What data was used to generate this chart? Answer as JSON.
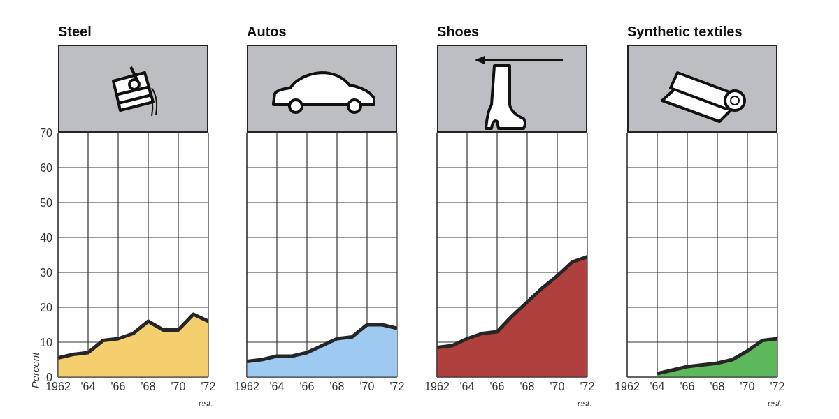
{
  "chart_data": [
    {
      "type": "area",
      "title": "Steel",
      "ylabel": "Percent",
      "x": [
        1962,
        1963,
        1964,
        1965,
        1966,
        1967,
        1968,
        1969,
        1970,
        1971,
        1972
      ],
      "values": [
        5.5,
        6.5,
        7,
        10.5,
        11,
        12.5,
        16,
        13.5,
        13.5,
        18,
        16
      ],
      "color": "#f5cf6e",
      "xlim": [
        1962,
        1972
      ],
      "xticks": [
        {
          "value": 1962,
          "label": "1962"
        },
        {
          "value": 1964,
          "label": "'64"
        },
        {
          "value": 1966,
          "label": "'66"
        },
        {
          "value": 1968,
          "label": "'68"
        },
        {
          "value": 1970,
          "label": "'70"
        },
        {
          "value": 1972,
          "label": "'72"
        }
      ],
      "ylim": [
        0,
        70
      ],
      "yticks": [
        0,
        10,
        20,
        30,
        40,
        50,
        60,
        70
      ],
      "grid": true,
      "annotations": [
        "est."
      ]
    },
    {
      "type": "area",
      "title": "Autos",
      "x": [
        1962,
        1963,
        1964,
        1965,
        1966,
        1967,
        1968,
        1969,
        1970,
        1971,
        1972
      ],
      "values": [
        4.5,
        5,
        6,
        6,
        7,
        9,
        11,
        11.5,
        15,
        15,
        14
      ],
      "color": "#9ec9f0",
      "xlim": [
        1962,
        1972
      ],
      "xticks": [
        {
          "value": 1962,
          "label": "1962"
        },
        {
          "value": 1964,
          "label": "'64"
        },
        {
          "value": 1966,
          "label": "'66"
        },
        {
          "value": 1968,
          "label": "'68"
        },
        {
          "value": 1970,
          "label": "'70"
        },
        {
          "value": 1972,
          "label": "'72"
        }
      ],
      "ylim": [
        0,
        70
      ],
      "yticks": [
        0,
        10,
        20,
        30,
        40,
        50,
        60,
        70
      ],
      "grid": true,
      "tick_labels": "x"
    },
    {
      "type": "area",
      "title": "Shoes",
      "x": [
        1962,
        1963,
        1964,
        1965,
        1966,
        1967,
        1968,
        1969,
        1970,
        1971,
        1972
      ],
      "values": [
        8.5,
        9,
        11,
        12.5,
        13,
        17.5,
        21.5,
        25.5,
        29,
        33,
        34.5
      ],
      "color": "#b0403d",
      "xlim": [
        1962,
        1972
      ],
      "xticks": [
        {
          "value": 1962,
          "label": "1962"
        },
        {
          "value": 1964,
          "label": "'64"
        },
        {
          "value": 1966,
          "label": "'66"
        },
        {
          "value": 1968,
          "label": "'68"
        },
        {
          "value": 1970,
          "label": "'70"
        },
        {
          "value": 1972,
          "label": "'72"
        }
      ],
      "ylim": [
        0,
        70
      ],
      "yticks": [
        0,
        10,
        20,
        30,
        40,
        50,
        60,
        70
      ],
      "grid": true,
      "tick_labels": "x",
      "annotations": [
        "est."
      ]
    },
    {
      "type": "area",
      "title": "Synthetic textiles",
      "x": [
        1964,
        1965,
        1966,
        1967,
        1968,
        1969,
        1970,
        1971,
        1972
      ],
      "values": [
        1,
        2,
        3,
        3.5,
        4,
        5,
        7.5,
        10.5,
        11
      ],
      "color": "#5cb85a",
      "xlim": [
        1962,
        1972
      ],
      "xticks": [
        {
          "value": 1962,
          "label": "1962"
        },
        {
          "value": 1964,
          "label": "'64"
        },
        {
          "value": 1966,
          "label": "'66"
        },
        {
          "value": 1968,
          "label": "'68"
        },
        {
          "value": 1970,
          "label": "'70"
        },
        {
          "value": 1972,
          "label": "'72"
        }
      ],
      "ylim": [
        0,
        70
      ],
      "yticks": [
        0,
        10,
        20,
        30,
        40,
        50,
        60,
        70
      ],
      "grid": true,
      "tick_labels": "x",
      "annotations": [
        "est."
      ]
    }
  ]
}
